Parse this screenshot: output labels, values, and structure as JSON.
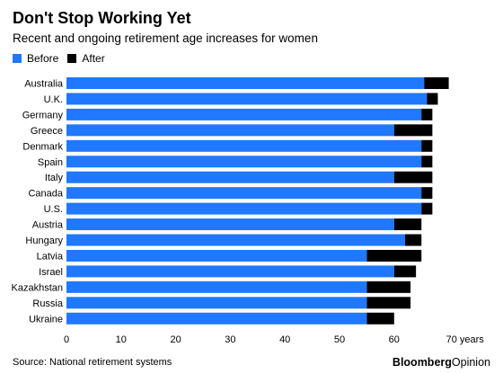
{
  "chart_data": {
    "type": "bar",
    "title": "Don't Stop Working Yet",
    "subtitle": "Recent and ongoing retirement age increases for women",
    "categories": [
      "Australia",
      "U.K.",
      "Germany",
      "Greece",
      "Denmark",
      "Spain",
      "Italy",
      "Canada",
      "U.S.",
      "Austria",
      "Hungary",
      "Latvia",
      "Israel",
      "Kazakhstan",
      "Russia",
      "Ukraine"
    ],
    "series": [
      {
        "name": "Before",
        "color": "#1f78ff",
        "values": [
          65.5,
          66,
          65,
          60,
          65,
          65,
          60,
          65,
          65,
          60,
          62,
          55,
          60,
          55,
          55,
          55
        ]
      },
      {
        "name": "After",
        "color": "#000000",
        "values": [
          70,
          68,
          67,
          67,
          67,
          67,
          67,
          67,
          67,
          65,
          65,
          65,
          64,
          63,
          63,
          60
        ]
      }
    ],
    "x_ticks": [
      "0",
      "10",
      "20",
      "30",
      "40",
      "50",
      "60",
      "70 years"
    ],
    "xlim": [
      0,
      70
    ],
    "legend": "top-left",
    "grid": false
  },
  "source": "Source: National retirement systems",
  "brand": {
    "name": "Bloomberg",
    "suffix": "Opinion"
  }
}
